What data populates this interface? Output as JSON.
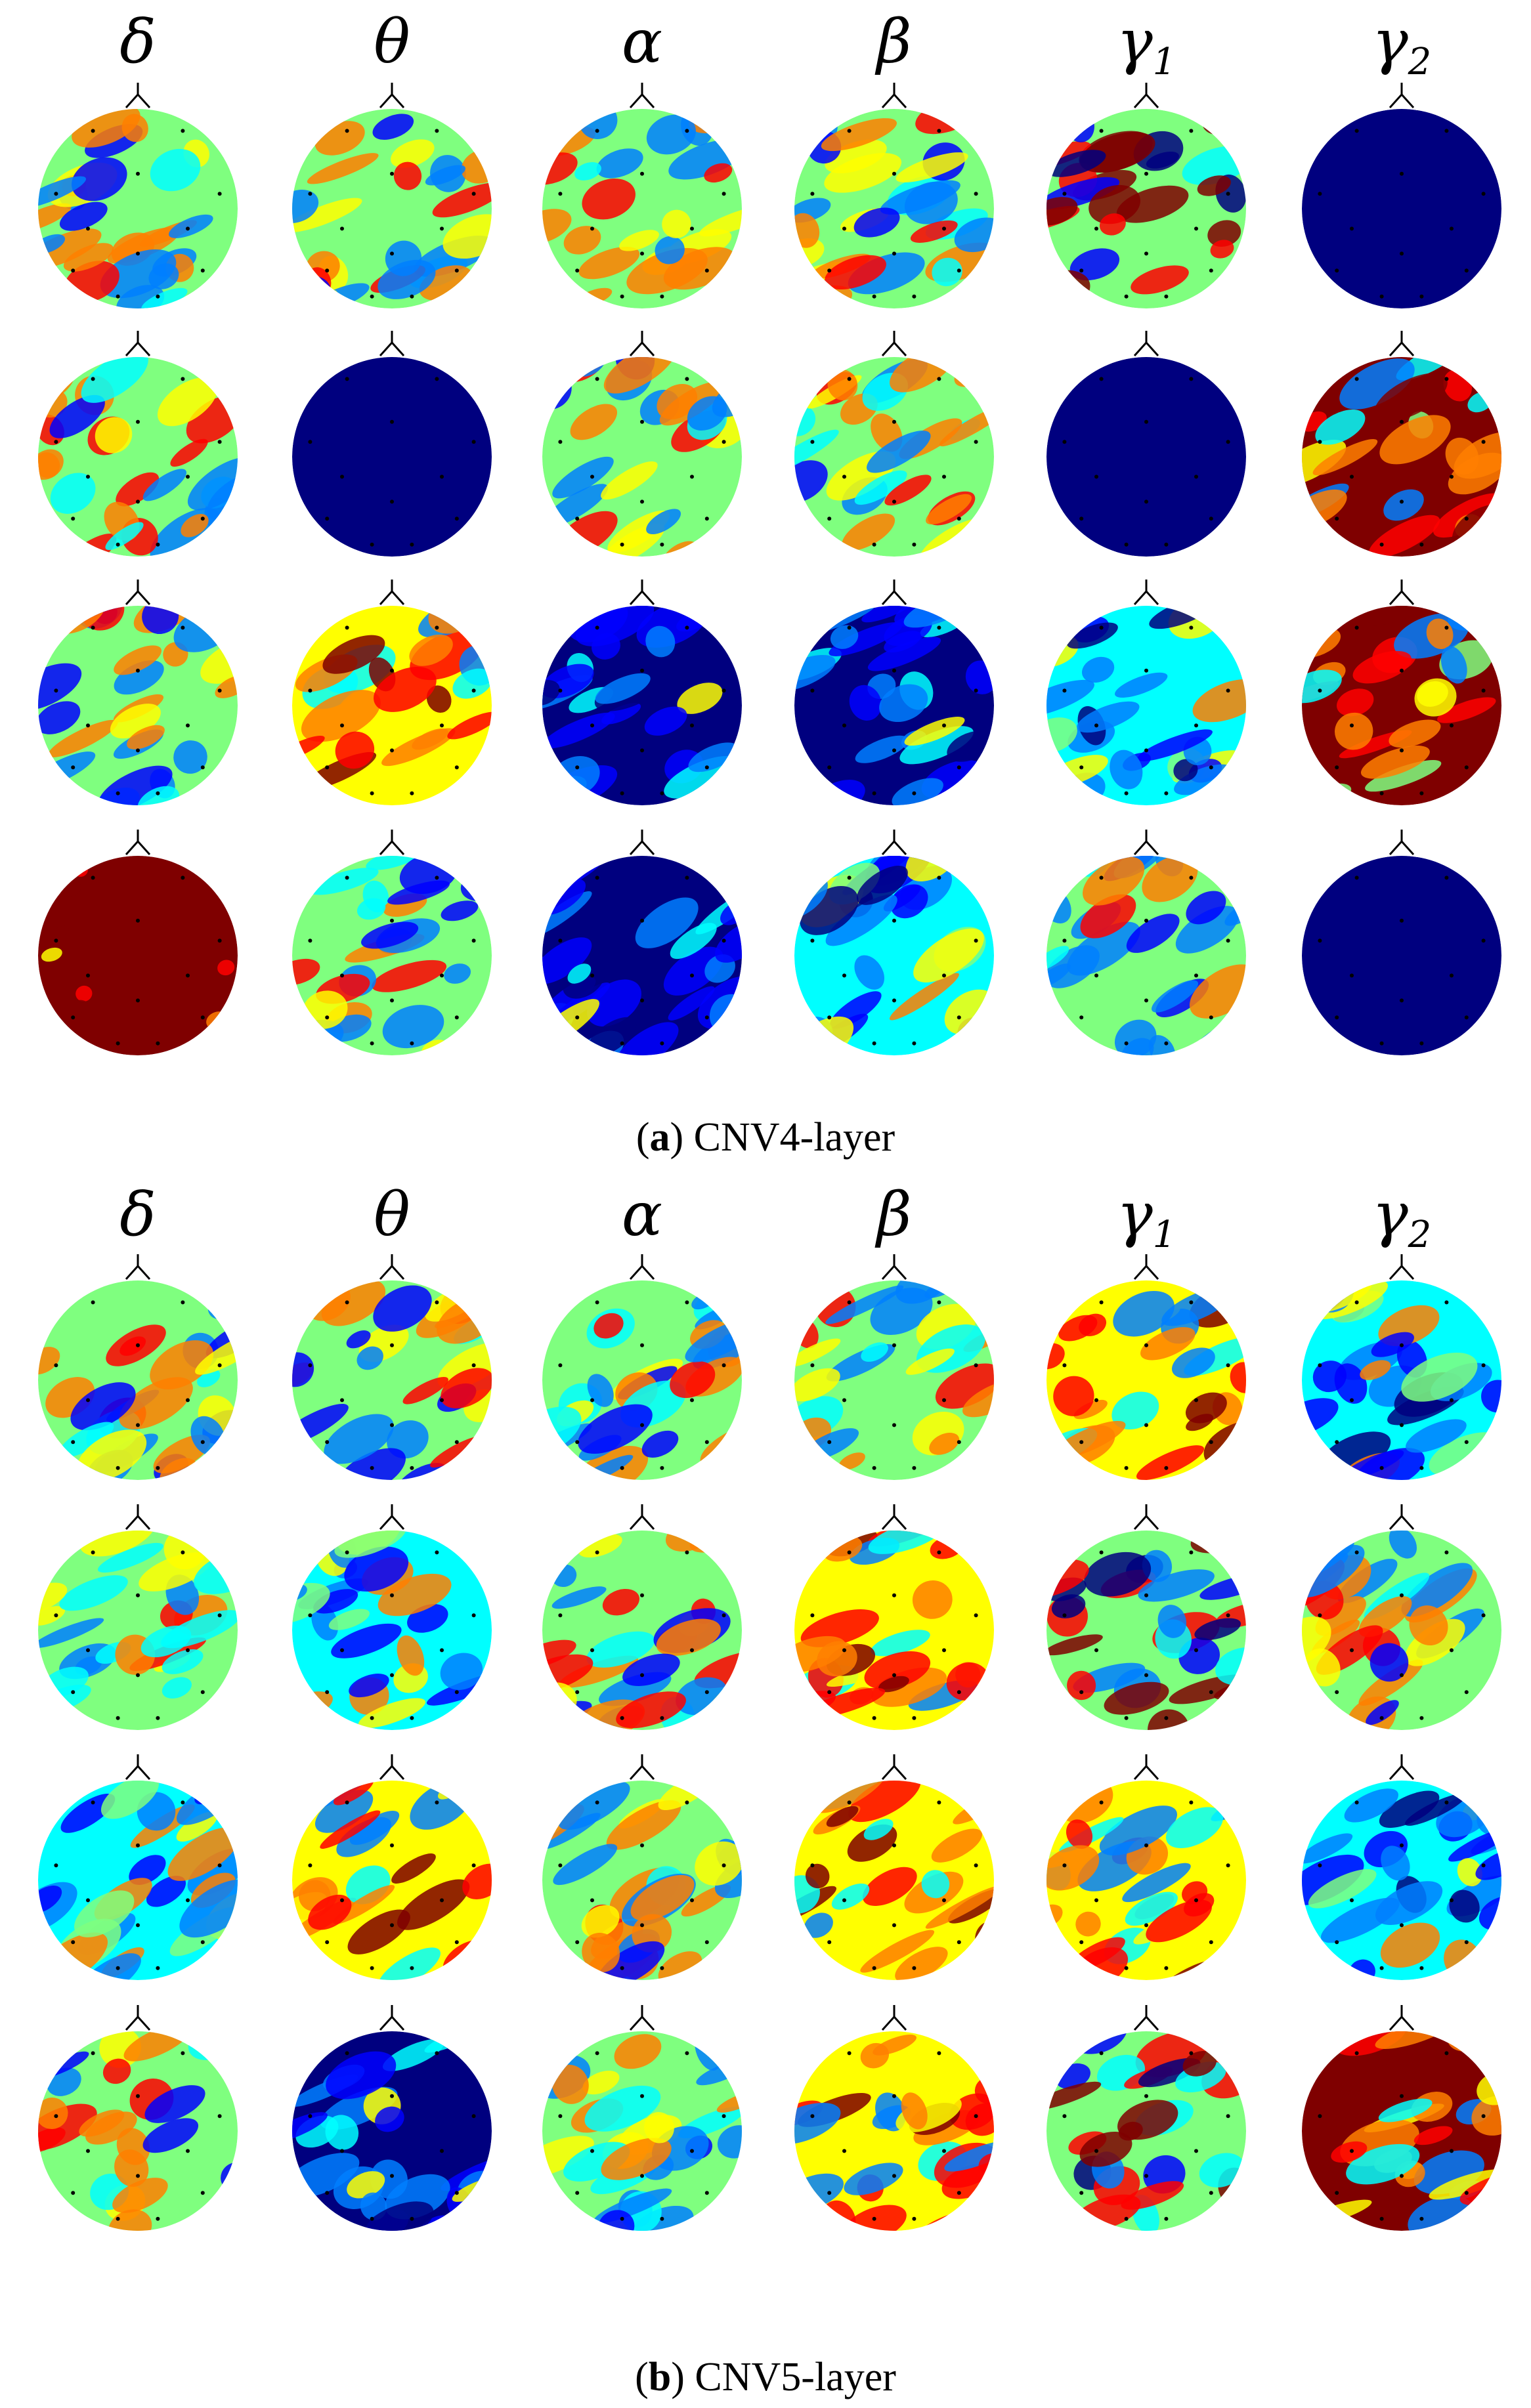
{
  "panels": [
    {
      "id": "a",
      "caption_letter": "a",
      "caption_text": "CNV4-layer",
      "bands": [
        {
          "base": "δ",
          "sub": ""
        },
        {
          "base": "θ",
          "sub": ""
        },
        {
          "base": "α",
          "sub": ""
        },
        {
          "base": "β",
          "sub": ""
        },
        {
          "base": "γ",
          "sub": "1"
        },
        {
          "base": "γ",
          "sub": "2"
        }
      ],
      "maps": [
        [
          "mixed",
          "mixed",
          "mixed",
          "mixed",
          "mixed-strong",
          "uniform-blue"
        ],
        [
          "mixed",
          "uniform-blue",
          "mixed",
          "mixed",
          "uniform-blue",
          "mostly-red"
        ],
        [
          "mixed",
          "mixed-warm",
          "mostly-blue",
          "mostly-blue",
          "mixed-cool",
          "mostly-red"
        ],
        [
          "uniform-red",
          "mixed",
          "mostly-blue",
          "mixed-cool",
          "mixed",
          "uniform-blue"
        ]
      ]
    },
    {
      "id": "b",
      "caption_letter": "b",
      "caption_text": "CNV5-layer",
      "bands": [
        {
          "base": "δ",
          "sub": ""
        },
        {
          "base": "θ",
          "sub": ""
        },
        {
          "base": "α",
          "sub": ""
        },
        {
          "base": "β",
          "sub": ""
        },
        {
          "base": "γ",
          "sub": "1"
        },
        {
          "base": "γ",
          "sub": "2"
        }
      ],
      "maps": [
        [
          "mixed",
          "mixed",
          "mixed",
          "mixed",
          "mixed-warm",
          "mixed-cool"
        ],
        [
          "mixed",
          "mixed-cool",
          "mixed",
          "mixed-warm",
          "mixed-strong",
          "mixed"
        ],
        [
          "mixed-cool",
          "mixed-warm",
          "mixed",
          "mixed-warm",
          "mixed-warm",
          "mixed-cool"
        ],
        [
          "mixed",
          "mostly-blue",
          "mixed",
          "mixed-warm",
          "mixed-strong",
          "mostly-red"
        ]
      ]
    }
  ],
  "colormap": [
    "#00007f",
    "#0000ff",
    "#007fff",
    "#00ffff",
    "#7fff7f",
    "#ffff00",
    "#ff7f00",
    "#ff0000",
    "#7f0000"
  ]
}
